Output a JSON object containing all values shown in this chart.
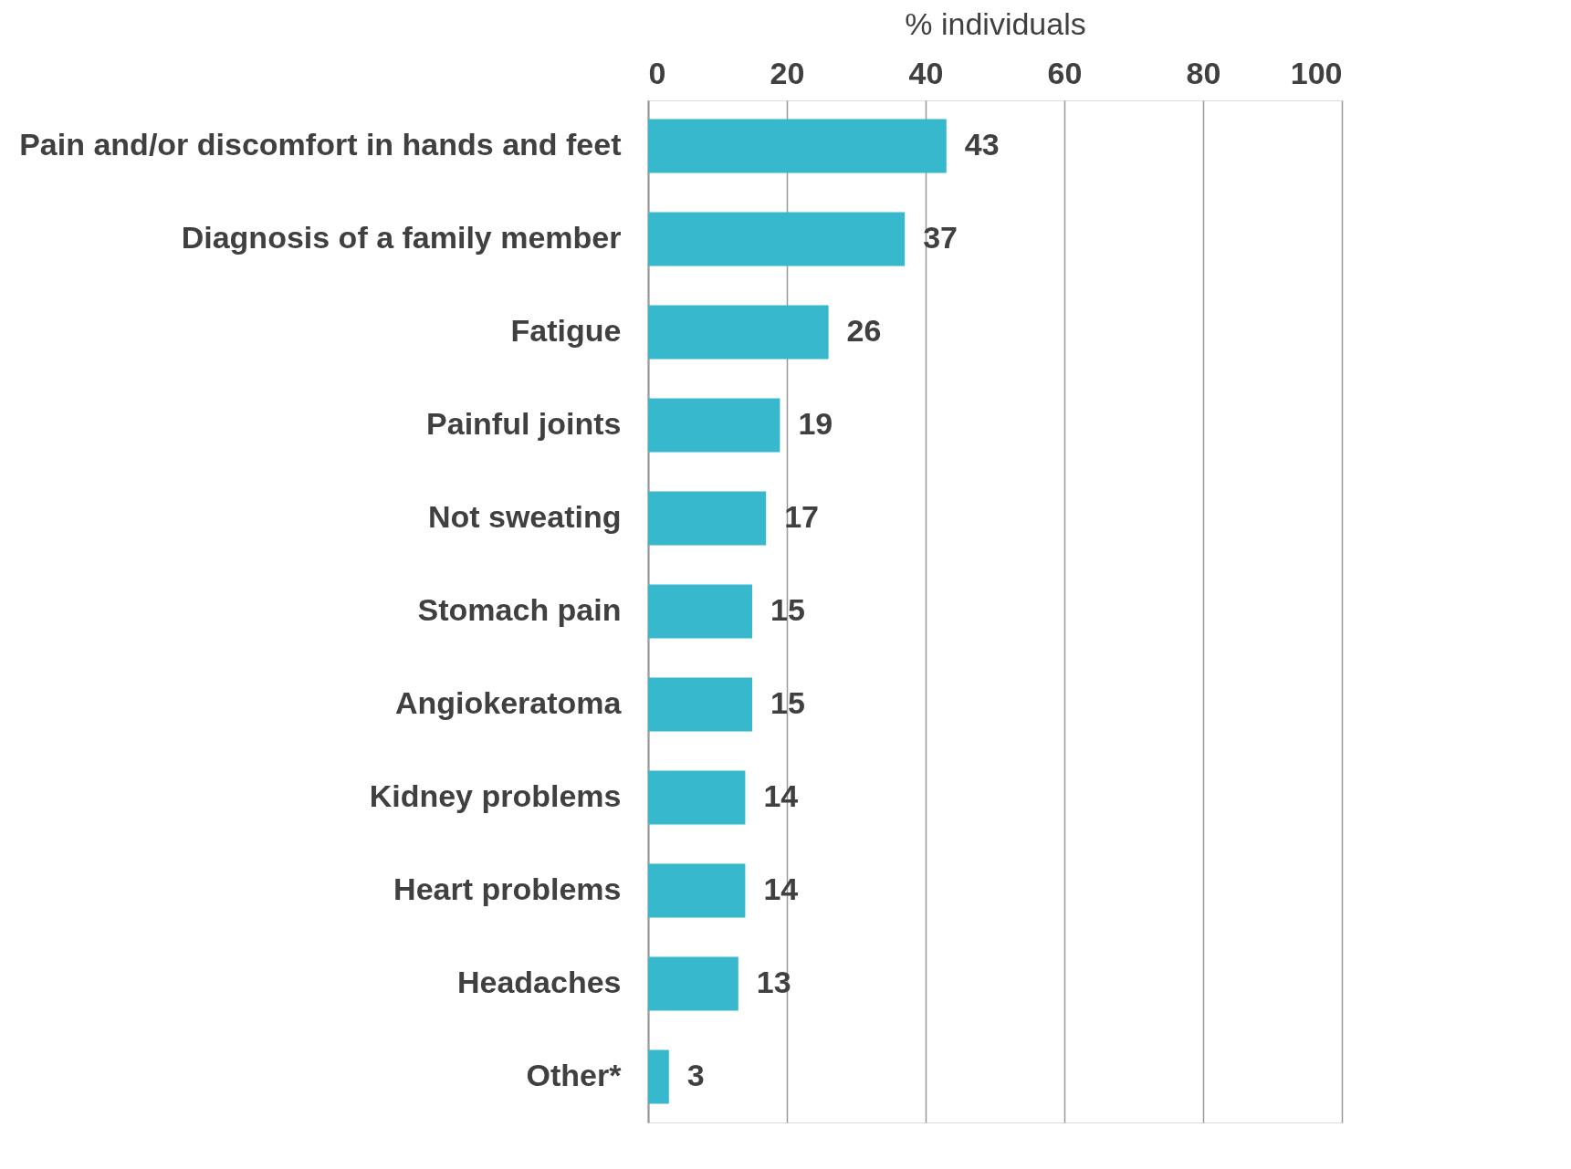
{
  "chart_data": {
    "type": "bar",
    "orientation": "horizontal",
    "xlabel": "% individuals",
    "categories": [
      "Pain and/or discomfort in hands and feet",
      "Diagnosis of a family member",
      "Fatigue",
      "Painful joints",
      "Not sweating",
      "Stomach pain",
      "Angiokeratoma",
      "Kidney problems",
      "Heart problems",
      "Headaches",
      "Other*"
    ],
    "values": [
      43,
      37,
      26,
      19,
      17,
      15,
      15,
      14,
      14,
      13,
      3
    ],
    "color": "#38b8cd",
    "xlim": [
      0,
      100
    ],
    "xticks": [
      0,
      20,
      40,
      60,
      80,
      100
    ],
    "grid": "x",
    "data_labels": true
  }
}
